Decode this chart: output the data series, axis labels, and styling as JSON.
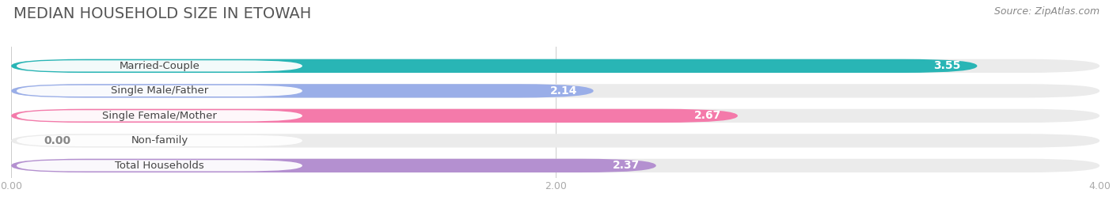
{
  "title": "MEDIAN HOUSEHOLD SIZE IN ETOWAH",
  "source": "Source: ZipAtlas.com",
  "categories": [
    "Married-Couple",
    "Single Male/Father",
    "Single Female/Mother",
    "Non-family",
    "Total Households"
  ],
  "values": [
    3.55,
    2.14,
    2.67,
    0.0,
    2.37
  ],
  "bar_colors": [
    "#29b5b5",
    "#9aaee8",
    "#f47aaa",
    "#f5c98e",
    "#b490d0"
  ],
  "xlim": [
    0,
    4.0
  ],
  "xticks": [
    0.0,
    2.0,
    4.0
  ],
  "xtick_labels": [
    "0.00",
    "2.00",
    "4.00"
  ],
  "title_fontsize": 14,
  "source_fontsize": 9,
  "bar_label_fontsize": 10,
  "category_fontsize": 9.5,
  "background_color": "#ffffff"
}
